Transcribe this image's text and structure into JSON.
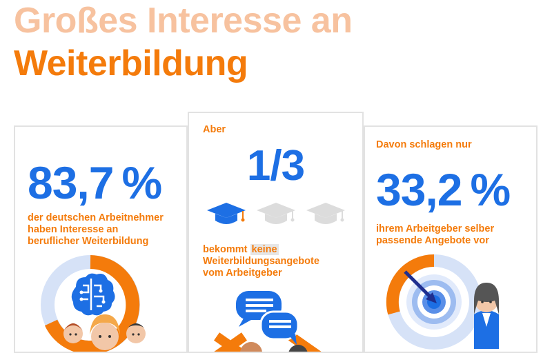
{
  "header": {
    "title_line1": "Großes Interesse an",
    "title_line2": "Weiterbildung"
  },
  "card1": {
    "value": "83,7",
    "unit": "%",
    "description_line1": "der deutschen Arbeitnehmer",
    "description_line2": "haben Interesse an",
    "description_line3": "beruflicher Weiterbildung",
    "icon": "brain-people-donut-icon"
  },
  "card2": {
    "intro": "Aber",
    "value": "1/3",
    "caps_total": 3,
    "caps_highlighted": 1,
    "text_line1_pre": "bekommt",
    "text_line1_highlight": "keine",
    "text_line2": "Weiterbildungsangebote",
    "text_line3": "vom Arbeitgeber",
    "icon": "speech-bubbles-icon"
  },
  "card3": {
    "intro": "Davon schlagen nur",
    "value": "33,2",
    "unit": "%",
    "description_line1": "ihrem Arbeitgeber selber",
    "description_line2": "passende Angebote vor",
    "icon": "target-person-icon"
  },
  "colors": {
    "orange": "#f47b0b",
    "light_orange": "#f7c29f",
    "blue": "#1d6fe4",
    "light_blue": "#d6e2f7",
    "grey": "#e2e2e2"
  }
}
